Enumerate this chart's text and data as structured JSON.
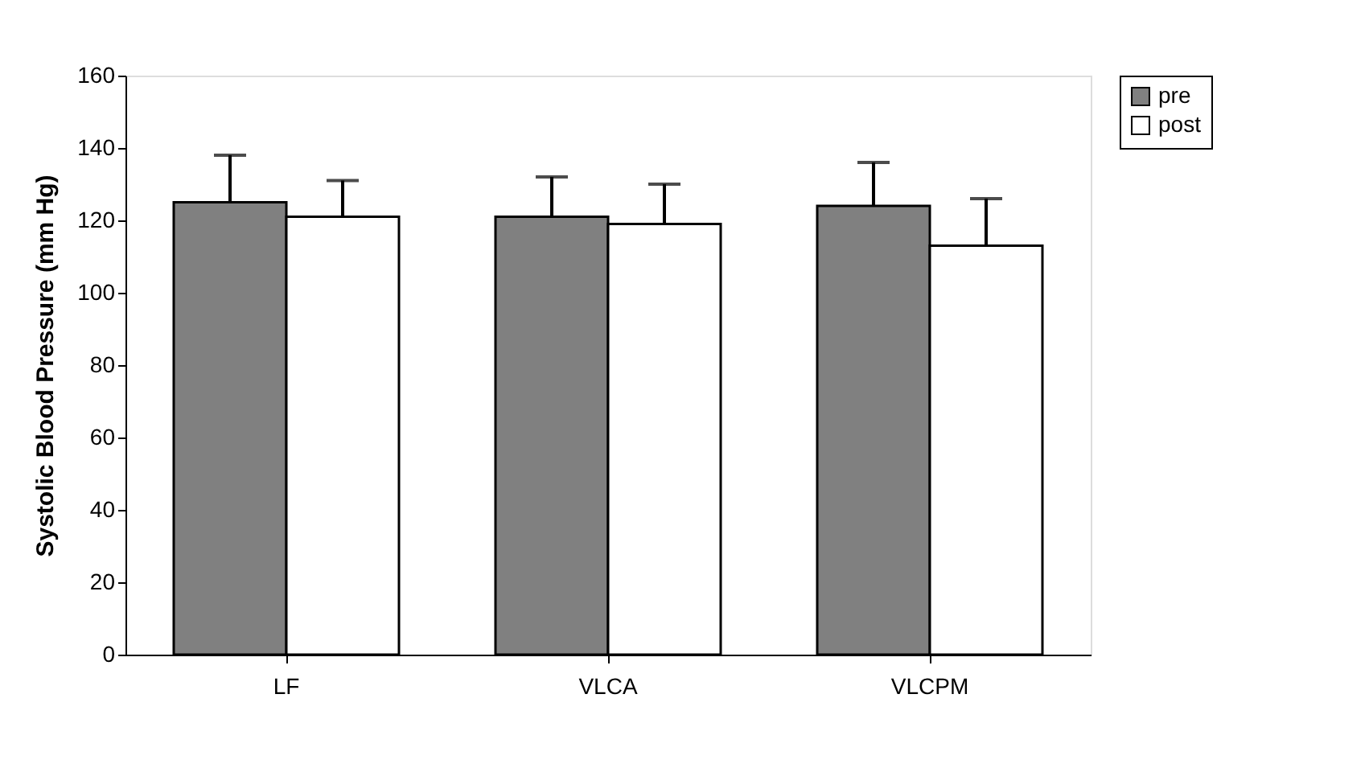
{
  "chart_data": {
    "type": "bar",
    "ylabel": "Systolic Blood Pressure (mm Hg)",
    "categories": [
      "LF",
      "VLCA",
      "VLCPM"
    ],
    "series": [
      {
        "name": "pre",
        "color": "#808080",
        "values": [
          125,
          121,
          124
        ],
        "errors": [
          [
            125,
            138
          ],
          [
            121,
            132
          ],
          [
            124,
            136
          ]
        ]
      },
      {
        "name": "post",
        "color": "#ffffff",
        "values": [
          121,
          119,
          113
        ],
        "errors": [
          [
            121,
            131
          ],
          [
            119,
            130
          ],
          [
            113,
            126
          ]
        ]
      }
    ],
    "ylim": [
      0,
      160
    ],
    "yticks": [
      0,
      20,
      40,
      60,
      80,
      100,
      120,
      140,
      160
    ],
    "grid": false,
    "legend": "right"
  }
}
